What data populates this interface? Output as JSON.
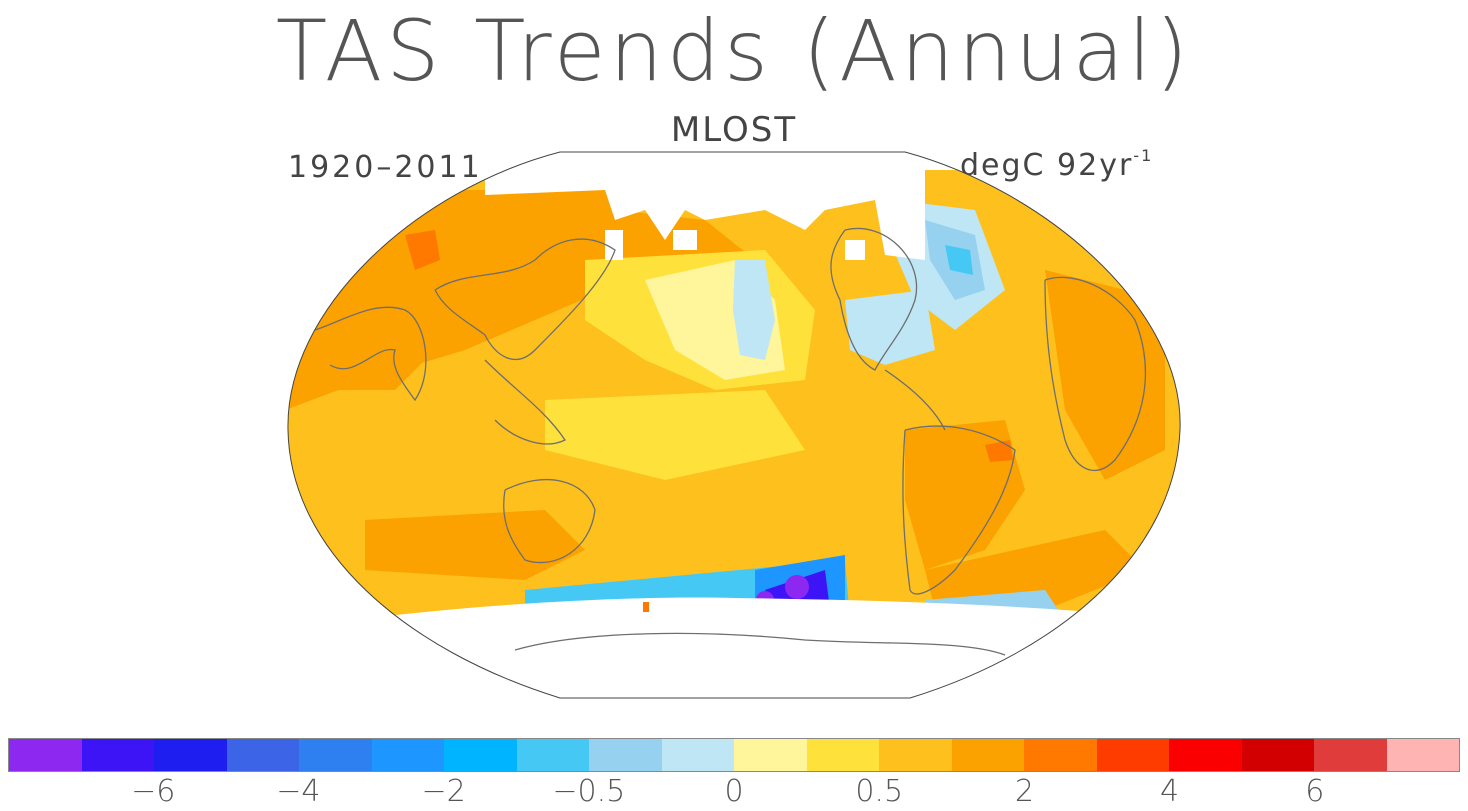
{
  "title": "TAS Trends (Annual)",
  "subtitle": "MLOST",
  "period": "1920–2011",
  "units": {
    "base": "degC 92yr",
    "exponent": "-1"
  },
  "colors": {
    "land_outline": "#6e6e6e",
    "ocean_base": "#fdc01d",
    "missing": "#ffffff"
  },
  "legend": {
    "colors": [
      "#8c28f0",
      "#3c14f5",
      "#1e1ef0",
      "#3c64e6",
      "#2e7ff0",
      "#1e96ff",
      "#00b4ff",
      "#46c8f5",
      "#96d2f0",
      "#bee6f5",
      "#fff59b",
      "#ffe13c",
      "#fdc01d",
      "#fba200",
      "#ff7800",
      "#ff3c00",
      "#fa0000",
      "#d20000",
      "#e03c3c",
      "#ffb4b4"
    ],
    "tick_labels": [
      "−6",
      "−4",
      "−2",
      "−0.5",
      "0",
      "0.5",
      "2",
      "4",
      "6"
    ],
    "tick_boundaries": [
      2,
      4,
      6,
      8,
      10,
      12,
      14,
      16,
      18
    ]
  }
}
